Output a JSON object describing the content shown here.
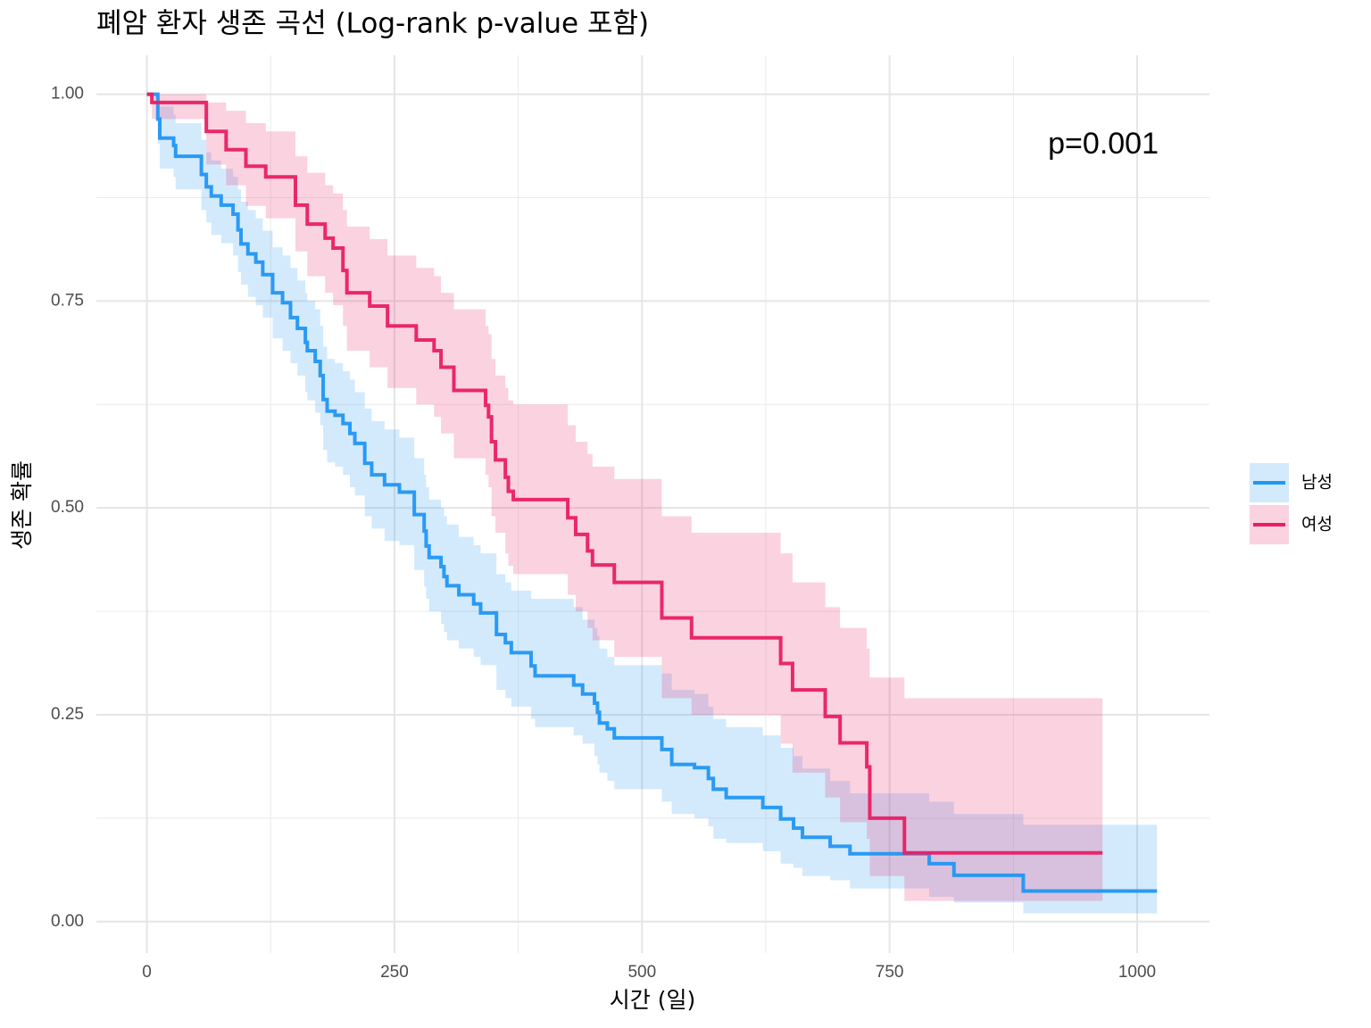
{
  "chart_data": {
    "type": "survival",
    "title": "폐암 환자 생존 곡선 (Log-rank p-value 포함)",
    "x_label": "시간 (일)",
    "y_label": "생존 확률",
    "annotation": "p=0.001",
    "xlim": [
      -51,
      1073
    ],
    "ylim": [
      -0.038,
      1.047
    ],
    "xticks": [
      0,
      250,
      500,
      750,
      1000
    ],
    "yticks": [
      {
        "value": 0,
        "label": "0.00"
      },
      {
        "value": 0.25,
        "label": "0.25"
      },
      {
        "value": 0.5,
        "label": "0.50"
      },
      {
        "value": 0.75,
        "label": "0.75"
      },
      {
        "value": 1,
        "label": "1.00"
      }
    ],
    "x_minor_ticks": [
      125,
      375,
      625,
      875
    ],
    "y_minor_ticks": [
      0.125,
      0.375,
      0.625,
      0.875
    ],
    "grid": true,
    "legend": "right",
    "series": [
      {
        "name": "남성",
        "color": "#2196f3",
        "x": [
          0,
          11,
          13,
          27,
          29,
          55,
          60,
          65,
          75,
          87,
          92,
          95,
          102,
          110,
          117,
          127,
          137,
          145,
          152,
          160,
          162,
          170,
          175,
          178,
          182,
          190,
          198,
          205,
          210,
          220,
          227,
          240,
          255,
          270,
          280,
          282,
          285,
          297,
          300,
          303,
          315,
          330,
          337,
          353,
          362,
          368,
          388,
          392,
          431,
          440,
          452,
          455,
          457,
          465,
          472,
          520,
          530,
          553,
          567,
          572,
          585,
          622,
          640,
          653,
          662,
          690,
          710,
          790,
          815,
          885,
          1020
        ],
        "values": [
          1.0,
          0.97,
          0.947,
          0.938,
          0.925,
          0.903,
          0.888,
          0.877,
          0.866,
          0.855,
          0.836,
          0.819,
          0.807,
          0.797,
          0.782,
          0.76,
          0.748,
          0.73,
          0.717,
          0.7,
          0.69,
          0.677,
          0.66,
          0.631,
          0.617,
          0.612,
          0.602,
          0.59,
          0.578,
          0.554,
          0.54,
          0.528,
          0.519,
          0.492,
          0.472,
          0.454,
          0.44,
          0.429,
          0.417,
          0.406,
          0.395,
          0.384,
          0.373,
          0.347,
          0.337,
          0.325,
          0.309,
          0.297,
          0.286,
          0.275,
          0.264,
          0.253,
          0.24,
          0.233,
          0.222,
          0.208,
          0.19,
          0.186,
          0.173,
          0.16,
          0.15,
          0.138,
          0.124,
          0.113,
          0.102,
          0.091,
          0.082,
          0.07,
          0.056,
          0.037,
          0.037
        ],
        "lower": [
          1.0,
          0.94,
          0.91,
          0.9,
          0.885,
          0.86,
          0.845,
          0.83,
          0.82,
          0.805,
          0.785,
          0.77,
          0.755,
          0.745,
          0.73,
          0.705,
          0.69,
          0.675,
          0.66,
          0.64,
          0.63,
          0.615,
          0.6,
          0.57,
          0.555,
          0.55,
          0.54,
          0.525,
          0.515,
          0.49,
          0.475,
          0.46,
          0.455,
          0.425,
          0.405,
          0.39,
          0.375,
          0.36,
          0.35,
          0.34,
          0.33,
          0.32,
          0.31,
          0.28,
          0.27,
          0.26,
          0.245,
          0.235,
          0.225,
          0.215,
          0.2,
          0.19,
          0.18,
          0.17,
          0.16,
          0.145,
          0.13,
          0.125,
          0.115,
          0.1,
          0.095,
          0.085,
          0.07,
          0.065,
          0.055,
          0.05,
          0.04,
          0.03,
          0.023,
          0.01,
          0.01
        ],
        "upper": [
          1.0,
          1.0,
          0.985,
          0.975,
          0.965,
          0.945,
          0.93,
          0.92,
          0.91,
          0.9,
          0.885,
          0.87,
          0.86,
          0.85,
          0.835,
          0.815,
          0.805,
          0.79,
          0.775,
          0.76,
          0.75,
          0.74,
          0.72,
          0.695,
          0.68,
          0.675,
          0.665,
          0.655,
          0.64,
          0.62,
          0.605,
          0.595,
          0.585,
          0.56,
          0.54,
          0.525,
          0.51,
          0.5,
          0.49,
          0.48,
          0.465,
          0.455,
          0.445,
          0.42,
          0.41,
          0.4,
          0.39,
          0.39,
          0.38,
          0.365,
          0.355,
          0.345,
          0.33,
          0.32,
          0.31,
          0.3,
          0.28,
          0.275,
          0.26,
          0.245,
          0.235,
          0.225,
          0.21,
          0.2,
          0.185,
          0.17,
          0.155,
          0.145,
          0.13,
          0.117,
          0.117
        ]
      },
      {
        "name": "여성",
        "color": "#e91e63",
        "x": [
          0,
          5,
          60,
          80,
          100,
          120,
          150,
          162,
          180,
          188,
          198,
          202,
          225,
          243,
          272,
          290,
          297,
          310,
          342,
          345,
          348,
          352,
          362,
          365,
          370,
          425,
          433,
          445,
          450,
          472,
          520,
          550,
          640,
          652,
          685,
          700,
          727,
          730,
          765,
          965
        ],
        "values": [
          1.0,
          0.99,
          0.955,
          0.933,
          0.913,
          0.9,
          0.866,
          0.843,
          0.826,
          0.814,
          0.787,
          0.76,
          0.744,
          0.72,
          0.703,
          0.69,
          0.67,
          0.642,
          0.624,
          0.61,
          0.58,
          0.558,
          0.537,
          0.52,
          0.51,
          0.488,
          0.468,
          0.448,
          0.431,
          0.41,
          0.367,
          0.343,
          0.312,
          0.28,
          0.248,
          0.216,
          0.187,
          0.125,
          0.083,
          0.083
        ],
        "lower": [
          1.0,
          0.97,
          0.915,
          0.89,
          0.865,
          0.85,
          0.81,
          0.78,
          0.76,
          0.745,
          0.72,
          0.69,
          0.67,
          0.645,
          0.625,
          0.61,
          0.59,
          0.56,
          0.54,
          0.525,
          0.49,
          0.47,
          0.445,
          0.43,
          0.42,
          0.395,
          0.375,
          0.355,
          0.34,
          0.32,
          0.27,
          0.25,
          0.215,
          0.18,
          0.15,
          0.12,
          0.1,
          0.055,
          0.025,
          0.025
        ],
        "upper": [
          1.0,
          1.0,
          0.99,
          0.98,
          0.965,
          0.955,
          0.925,
          0.905,
          0.89,
          0.88,
          0.86,
          0.84,
          0.825,
          0.805,
          0.79,
          0.78,
          0.76,
          0.74,
          0.72,
          0.71,
          0.68,
          0.66,
          0.645,
          0.63,
          0.625,
          0.6,
          0.58,
          0.565,
          0.55,
          0.535,
          0.49,
          0.47,
          0.445,
          0.41,
          0.38,
          0.355,
          0.33,
          0.295,
          0.27,
          0.27
        ]
      }
    ]
  }
}
